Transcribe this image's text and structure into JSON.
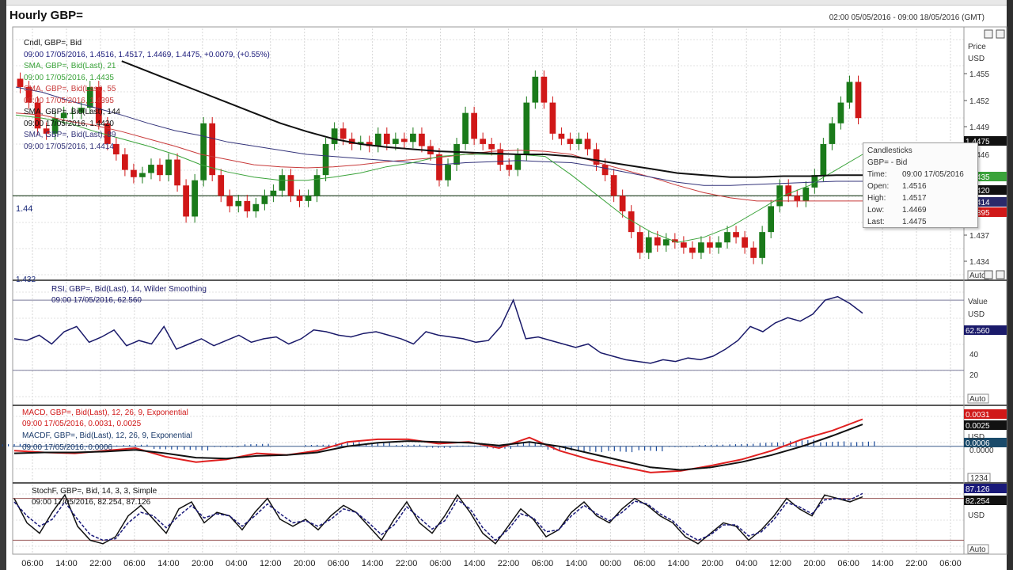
{
  "header": {
    "title": "Hourly GBP=",
    "date_range": "02:00 05/05/2016 - 09:00 18/05/2016 (GMT)"
  },
  "colors": {
    "candle_up": "#1a7a1a",
    "candle_down": "#d01818",
    "sma21": "#3aa33a",
    "sma55": "#c83a3a",
    "sma144": "#111111",
    "sma89": "#33337a",
    "rsi": "#1a1a6a",
    "macd": "#e02020",
    "macdf": "#111111",
    "hist": "#1a4a9a",
    "stoch": "#111111",
    "stoch_slow": "#1a1a7a"
  },
  "price_panel": {
    "legend": [
      {
        "name": "Cndl, GBP=, Bid",
        "values": "09:00 17/05/2016, 1.4516, 1.4517, 1.4469, 1.4475, +0.0079, (+0.55%)",
        "color": "#111111",
        "vcolor": "#1a1a7a"
      },
      {
        "name": "SMA, GBP=, Bid(Last), 21",
        "values": "09:00 17/05/2016, 1.4435",
        "color": "#3aa33a",
        "vcolor": "#3aa33a"
      },
      {
        "name": "SMA, GBP=, Bid(Last), 55",
        "values": "09:00 17/05/2016, 1.4395",
        "color": "#c83a3a",
        "vcolor": "#c83a3a"
      },
      {
        "name": "SMA, GBP=, Bid(Last), 144",
        "values": "09:00 17/05/2016, 1.4420",
        "color": "#111111",
        "vcolor": "#111111"
      },
      {
        "name": "SMA, GBP=, Bid(Last), 89",
        "values": "09:00 17/05/2016, 1.4414",
        "color": "#33337a",
        "vcolor": "#33337a"
      }
    ],
    "axis_title": "Price",
    "axis_unit": "USD",
    "ticks": [
      "1.455",
      "1.452",
      "1.449",
      "1.446",
      "1.437",
      "1.434"
    ],
    "hline_label": "1.44",
    "bottom_label": "1.432",
    "tags": [
      {
        "text": "1.4475",
        "bg": "#111111"
      },
      {
        "text": "1.4435",
        "bg": "#3aa33a"
      },
      {
        "text": "1.4420",
        "bg": "#111111"
      },
      {
        "text": "1.4414",
        "bg": "#2a2a6a"
      },
      {
        "text": "1.4395",
        "bg": "#d01818"
      }
    ],
    "auto_label": "Auto"
  },
  "tooltip": {
    "heading": "Candlesticks",
    "instrument": "GBP= - Bid",
    "rows": [
      {
        "label": "Time:",
        "value": "09:00 17/05/2016"
      },
      {
        "label": "Open:",
        "value": "1.4516"
      },
      {
        "label": "High:",
        "value": "1.4517"
      },
      {
        "label": "Low:",
        "value": "1.4469"
      },
      {
        "label": "Last:",
        "value": "1.4475"
      }
    ]
  },
  "rsi_panel": {
    "legend_name": "RSI, GBP=, Bid(Last), 14, Wilder Smoothing",
    "legend_values": "09:00 17/05/2016, 62.560",
    "axis_title": "Value",
    "axis_unit": "USD",
    "ticks": [
      "40",
      "20"
    ],
    "tag": "62.560",
    "auto_label": "Auto"
  },
  "macd_panel": {
    "legend_macd": "MACD, GBP=, Bid(Last), 12, 26, 9, Exponential",
    "legend_macd_values": "09:00 17/05/2016, 0.0031, 0.0025",
    "legend_macdf": "MACDF, GBP=, Bid(Last), 12, 26, 9, Exponential",
    "legend_macdf_values": "09:00 17/05/2016, 0.0006",
    "axis_unit": "USD",
    "zero_label": "0.0000",
    "tags": [
      "0.0031",
      "0.0025",
      "0.0006"
    ],
    "extra_label": "1234"
  },
  "stoch_panel": {
    "legend_name": "StochF, GBP=, Bid, 14, 3, 3, Simple",
    "legend_values": "09:00 17/05/2016, 82.254, 87.126",
    "axis_unit": "USD",
    "tags": [
      "87.126",
      "82.254"
    ],
    "auto_label": "Auto"
  },
  "x_axis": {
    "labels": [
      "06:00",
      "14:00",
      "22:00",
      "06:00",
      "14:00",
      "20:00",
      "04:00",
      "12:00",
      "20:00",
      "06:00",
      "14:00",
      "22:00",
      "06:00",
      "14:00",
      "22:00",
      "06:00",
      "14:00",
      "00:00",
      "06:00",
      "14:00",
      "20:00",
      "04:00",
      "12:00",
      "20:00",
      "06:00",
      "14:00",
      "22:00",
      "06:00"
    ]
  },
  "chart_data": [
    {
      "type": "candlestick",
      "title": "Hourly GBP=",
      "ylabel": "Price",
      "ylim": [
        1.432,
        1.456
      ],
      "note_values": "sampled approximations of hourly closes",
      "close": [
        1.4505,
        1.449,
        1.4465,
        1.446,
        1.4475,
        1.448,
        1.448,
        1.4485,
        1.4505,
        1.447,
        1.445,
        1.444,
        1.4425,
        1.4418,
        1.4422,
        1.443,
        1.442,
        1.4435,
        1.441,
        1.438,
        1.4415,
        1.447,
        1.442,
        1.44,
        1.439,
        1.4395,
        1.4385,
        1.4392,
        1.44,
        1.4405,
        1.442,
        1.44,
        1.4395,
        1.44,
        1.442,
        1.445,
        1.4465,
        1.4455,
        1.445,
        1.4452,
        1.4448,
        1.446,
        1.445,
        1.4455,
        1.4452,
        1.446,
        1.4448,
        1.444,
        1.4415,
        1.443,
        1.445,
        1.448,
        1.4455,
        1.445,
        1.4445,
        1.443,
        1.4425,
        1.444,
        1.449,
        1.4515,
        1.449,
        1.446,
        1.4455,
        1.445,
        1.4455,
        1.4445,
        1.443,
        1.442,
        1.44,
        1.4385,
        1.4365,
        1.4345,
        1.436,
        1.4352,
        1.4358,
        1.4355,
        1.435,
        1.4345,
        1.4355,
        1.435,
        1.4355,
        1.4365,
        1.436,
        1.435,
        1.434,
        1.4365,
        1.439,
        1.441,
        1.44,
        1.4395,
        1.4408,
        1.442,
        1.445,
        1.447,
        1.449,
        1.451,
        1.4475
      ],
      "sma21": [
        1.4478,
        1.4475,
        1.447,
        1.4462,
        1.4455,
        1.4448,
        1.444,
        1.443,
        1.4423,
        1.4418,
        1.4415,
        1.4415,
        1.4418,
        1.4422,
        1.4428,
        1.4432,
        1.4438,
        1.444,
        1.444,
        1.444,
        1.4438,
        1.442,
        1.44,
        1.438,
        1.4365,
        1.4355,
        1.436,
        1.437,
        1.4385,
        1.44,
        1.441,
        1.4425,
        1.444
      ],
      "sma55": [
        1.448,
        1.4478,
        1.4472,
        1.4468,
        1.4462,
        1.4455,
        1.4448,
        1.444,
        1.4435,
        1.443,
        1.4428,
        1.4427,
        1.4428,
        1.443,
        1.4433,
        1.4435,
        1.4437,
        1.444,
        1.4443,
        1.4444,
        1.4443,
        1.444,
        1.4432,
        1.4425,
        1.4418,
        1.441,
        1.4403,
        1.4398,
        1.4395,
        1.4395,
        1.4395,
        1.4395,
        1.4395
      ],
      "sma89": [
        1.4505,
        1.45,
        1.4492,
        1.4485,
        1.4478,
        1.447,
        1.4463,
        1.4458,
        1.4452,
        1.4448,
        1.4444,
        1.444,
        1.4438,
        1.4436,
        1.4434,
        1.4432,
        1.443,
        1.4432,
        1.4433,
        1.4434,
        1.4433,
        1.4432,
        1.4428,
        1.4423,
        1.4418,
        1.4413,
        1.441,
        1.441,
        1.4411,
        1.4412,
        1.4413,
        1.4414,
        1.4414
      ],
      "sma144": [
        null,
        null,
        null,
        null,
        1.453,
        1.452,
        1.451,
        1.45,
        1.449,
        1.448,
        1.447,
        1.4462,
        1.4455,
        1.445,
        1.4447,
        1.4445,
        1.4443,
        1.4442,
        1.4441,
        1.444,
        1.444,
        1.4438,
        1.4434,
        1.443,
        1.4426,
        1.4422,
        1.442,
        1.4418,
        1.4418,
        1.4419,
        1.4419,
        1.442,
        1.442
      ],
      "hline": 1.44
    },
    {
      "type": "line",
      "title": "RSI",
      "ylim": [
        10,
        80
      ],
      "values": [
        48,
        47,
        50,
        45,
        52,
        55,
        46,
        49,
        53,
        44,
        47,
        45,
        55,
        42,
        45,
        48,
        44,
        47,
        50,
        46,
        48,
        49,
        45,
        48,
        53,
        52,
        50,
        49,
        51,
        52,
        50,
        48,
        45,
        52,
        50,
        49,
        48,
        46,
        47,
        55,
        70,
        48,
        49,
        47,
        45,
        43,
        45,
        40,
        38,
        36,
        35,
        34,
        36,
        35,
        37,
        36,
        38,
        42,
        47,
        55,
        52,
        57,
        60,
        58,
        62,
        70,
        72,
        68,
        62.56
      ]
    },
    {
      "type": "bar+line",
      "title": "MACD",
      "ylim": [
        -0.004,
        0.0045
      ],
      "macd": [
        -0.0005,
        -0.0007,
        -0.0008,
        -0.0005,
        -0.0002,
        -0.0012,
        -0.0018,
        -0.0015,
        -0.0008,
        -0.001,
        -0.0005,
        0.0005,
        0.0008,
        0.0008,
        0.0003,
        0.0005,
        -0.0002,
        0.001,
        -0.0005,
        -0.0015,
        -0.0023,
        -0.003,
        -0.0028,
        -0.0022,
        -0.0015,
        -0.0005,
        0.0008,
        0.0018,
        0.0031
      ],
      "signal": [
        -0.0008,
        -0.0007,
        -0.0007,
        -0.0006,
        -0.0004,
        -0.0008,
        -0.0013,
        -0.0014,
        -0.0011,
        -0.001,
        -0.0007,
        0.0,
        0.0004,
        0.0006,
        0.0005,
        0.0004,
        0.0001,
        0.0005,
        0.0,
        -0.0008,
        -0.0016,
        -0.0024,
        -0.0027,
        -0.0024,
        -0.0018,
        -0.001,
        0.0,
        0.0012,
        0.0025
      ],
      "hist": [
        0.0003,
        0.0,
        -0.0001,
        0.0001,
        0.0002,
        -0.0004,
        -0.0005,
        -0.0001,
        0.0003,
        0.0,
        0.0002,
        0.0005,
        0.0004,
        0.0002,
        -0.0002,
        0.0001,
        -0.0003,
        0.0005,
        -0.0005,
        -0.0007,
        -0.0007,
        -0.0006,
        -0.0001,
        0.0002,
        0.0003,
        0.0005,
        0.0008,
        0.0006,
        0.0006
      ]
    },
    {
      "type": "line",
      "title": "StochF",
      "ylim": [
        0,
        100
      ],
      "k": [
        80,
        45,
        30,
        60,
        85,
        40,
        20,
        15,
        25,
        55,
        70,
        50,
        30,
        65,
        75,
        45,
        60,
        55,
        35,
        60,
        80,
        50,
        40,
        50,
        35,
        55,
        70,
        60,
        40,
        20,
        50,
        75,
        45,
        30,
        55,
        85,
        60,
        30,
        15,
        40,
        65,
        50,
        25,
        35,
        60,
        75,
        55,
        45,
        65,
        80,
        70,
        55,
        45,
        25,
        15,
        30,
        45,
        40,
        20,
        35,
        55,
        80,
        65,
        55,
        85,
        80,
        75,
        82.25
      ],
      "d": [
        75,
        55,
        40,
        50,
        75,
        50,
        28,
        20,
        22,
        45,
        60,
        55,
        38,
        55,
        70,
        52,
        58,
        55,
        40,
        55,
        72,
        58,
        45,
        48,
        40,
        50,
        65,
        60,
        45,
        28,
        42,
        68,
        52,
        36,
        48,
        78,
        65,
        38,
        20,
        35,
        58,
        52,
        32,
        35,
        55,
        70,
        58,
        48,
        60,
        76,
        72,
        58,
        48,
        30,
        20,
        28,
        42,
        42,
        26,
        32,
        50,
        74,
        68,
        58,
        78,
        80,
        78,
        87.13
      ]
    }
  ]
}
